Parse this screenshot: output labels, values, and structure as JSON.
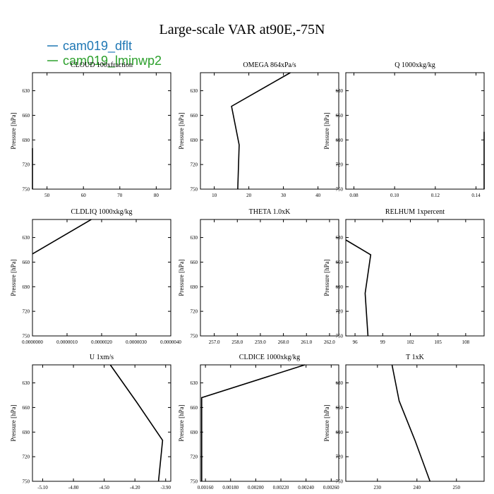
{
  "title": "Large-scale VAR at90E,-75N",
  "legend": [
    {
      "label": "cam019_dflt",
      "color": "#1f77b4"
    },
    {
      "label": "cam019_lminwp2",
      "color": "#2ca02c"
    }
  ],
  "chart_data": [
    {
      "type": "line",
      "title": "CLOUD  100xfraction",
      "ylabel": "Pressure [hPa]",
      "xlim": [
        46,
        84
      ],
      "ylim": [
        750,
        608
      ],
      "xticks": [
        "50",
        "60",
        "70",
        "80"
      ],
      "xtick_values": [
        50,
        60,
        70,
        80
      ],
      "yticks": [
        "630",
        "660",
        "690",
        "720",
        "750"
      ],
      "series": [
        {
          "x": [
            46,
            46
          ],
          "y": [
            700,
            750
          ]
        }
      ]
    },
    {
      "type": "line",
      "title": "OMEGA  864xPa/s",
      "ylabel": "Pressure [hPa]",
      "xlim": [
        6,
        46
      ],
      "ylim": [
        750,
        608
      ],
      "xticks": [
        "10",
        "20",
        "30",
        "40"
      ],
      "xtick_values": [
        10,
        20,
        30,
        40
      ],
      "yticks": [
        "630",
        "660",
        "690",
        "720",
        "750"
      ],
      "series": [
        {
          "x": [
            32,
            15,
            17.2,
            16.8
          ],
          "y": [
            608,
            649,
            696,
            750
          ]
        }
      ]
    },
    {
      "type": "line",
      "title": "Q  1000xkg/kg",
      "ylabel": "Pressure [hPa]",
      "xlim": [
        0.076,
        0.144
      ],
      "ylim": [
        750,
        608
      ],
      "xticks": [
        "0.08",
        "0.10",
        "0.12",
        "0.14"
      ],
      "xtick_values": [
        0.08,
        0.1,
        0.12,
        0.14
      ],
      "yticks": [
        "630",
        "660",
        "690",
        "720",
        "750"
      ],
      "series": [
        {
          "x": [
            0.144,
            0.144
          ],
          "y": [
            680,
            750
          ]
        }
      ]
    },
    {
      "type": "line",
      "title": "CLDLIQ  1000xkg/kg",
      "ylabel": "Pressure [hPa]",
      "xlim": [
        0,
        4e-06
      ],
      "ylim": [
        750,
        608
      ],
      "xticks": [
        "0.0000000",
        "0.0000010",
        "0.0000020",
        "0.0000030",
        "0.0000040"
      ],
      "xtick_values": [
        0,
        1e-06,
        2e-06,
        3e-06,
        4e-06
      ],
      "yticks": [
        "630",
        "660",
        "690",
        "720",
        "750"
      ],
      "series": [
        {
          "x": [
            1.7e-06,
            0
          ],
          "y": [
            608,
            650
          ]
        }
      ]
    },
    {
      "type": "line",
      "title": "THETA  1.0xK",
      "ylabel": "Pressure [hPa]",
      "xlim": [
        256.4,
        262.4
      ],
      "ylim": [
        750,
        608
      ],
      "xticks": [
        "257.0",
        "258.0",
        "259.0",
        "260.0",
        "261.0",
        "262.0"
      ],
      "xtick_values": [
        257,
        258,
        259,
        260,
        261,
        262
      ],
      "yticks": [
        "630",
        "660",
        "690",
        "720",
        "750"
      ],
      "series": []
    },
    {
      "type": "line",
      "title": "RELHUM  1xpercent",
      "ylabel": "Pressure [hPa]",
      "xlim": [
        95,
        110
      ],
      "ylim": [
        750,
        608
      ],
      "xticks": [
        "96",
        "99",
        "102",
        "105",
        "108"
      ],
      "xtick_values": [
        96,
        99,
        102,
        105,
        108
      ],
      "yticks": [
        "630",
        "660",
        "690",
        "720",
        "750"
      ],
      "series": [
        {
          "x": [
            95,
            97.7,
            97.1,
            97.4
          ],
          "y": [
            633,
            651,
            698,
            750
          ]
        }
      ]
    },
    {
      "type": "line",
      "title": "U  1xm/s",
      "ylabel": "Pressure [hPa]",
      "xlim": [
        -5.2,
        -3.85
      ],
      "ylim": [
        750,
        608
      ],
      "xticks": [
        "-5.10",
        "-4.80",
        "-4.50",
        "-4.20",
        "-3.90"
      ],
      "xtick_values": [
        -5.1,
        -4.8,
        -4.5,
        -4.2,
        -3.9
      ],
      "yticks": [
        "630",
        "660",
        "690",
        "720",
        "750"
      ],
      "series": [
        {
          "x": [
            -4.44,
            -4.18,
            -3.93,
            -3.97
          ],
          "y": [
            608,
            654,
            700,
            750
          ]
        }
      ]
    },
    {
      "type": "line",
      "title": "CLDICE  1000xkg/kg",
      "ylabel": "Pressure [hPa]",
      "xlim": [
        0.00156,
        0.00266
      ],
      "ylim": [
        750,
        608
      ],
      "xticks": [
        "0.00160",
        "0.00180",
        "0.00200",
        "0.00220",
        "0.00240",
        "0.00260"
      ],
      "xtick_values": [
        0.0016,
        0.0018,
        0.002,
        0.0022,
        0.0024,
        0.0026
      ],
      "yticks": [
        "630",
        "660",
        "690",
        "720",
        "750"
      ],
      "series": [
        {
          "x": [
            0.00239,
            0.00157,
            0.00157
          ],
          "y": [
            608,
            648,
            750
          ]
        }
      ]
    },
    {
      "type": "line",
      "title": "T  1xK",
      "ylabel": "Pressure [hPa]",
      "xlim": [
        222,
        257
      ],
      "ylim": [
        750,
        608
      ],
      "xticks": [
        "230",
        "240",
        "250"
      ],
      "xtick_values": [
        230,
        240,
        250
      ],
      "yticks": [
        "630",
        "660",
        "690",
        "720",
        "750"
      ],
      "series": [
        {
          "x": [
            233.7,
            235.5,
            239.5,
            243.3
          ],
          "y": [
            608,
            652,
            700,
            750
          ]
        }
      ]
    }
  ]
}
